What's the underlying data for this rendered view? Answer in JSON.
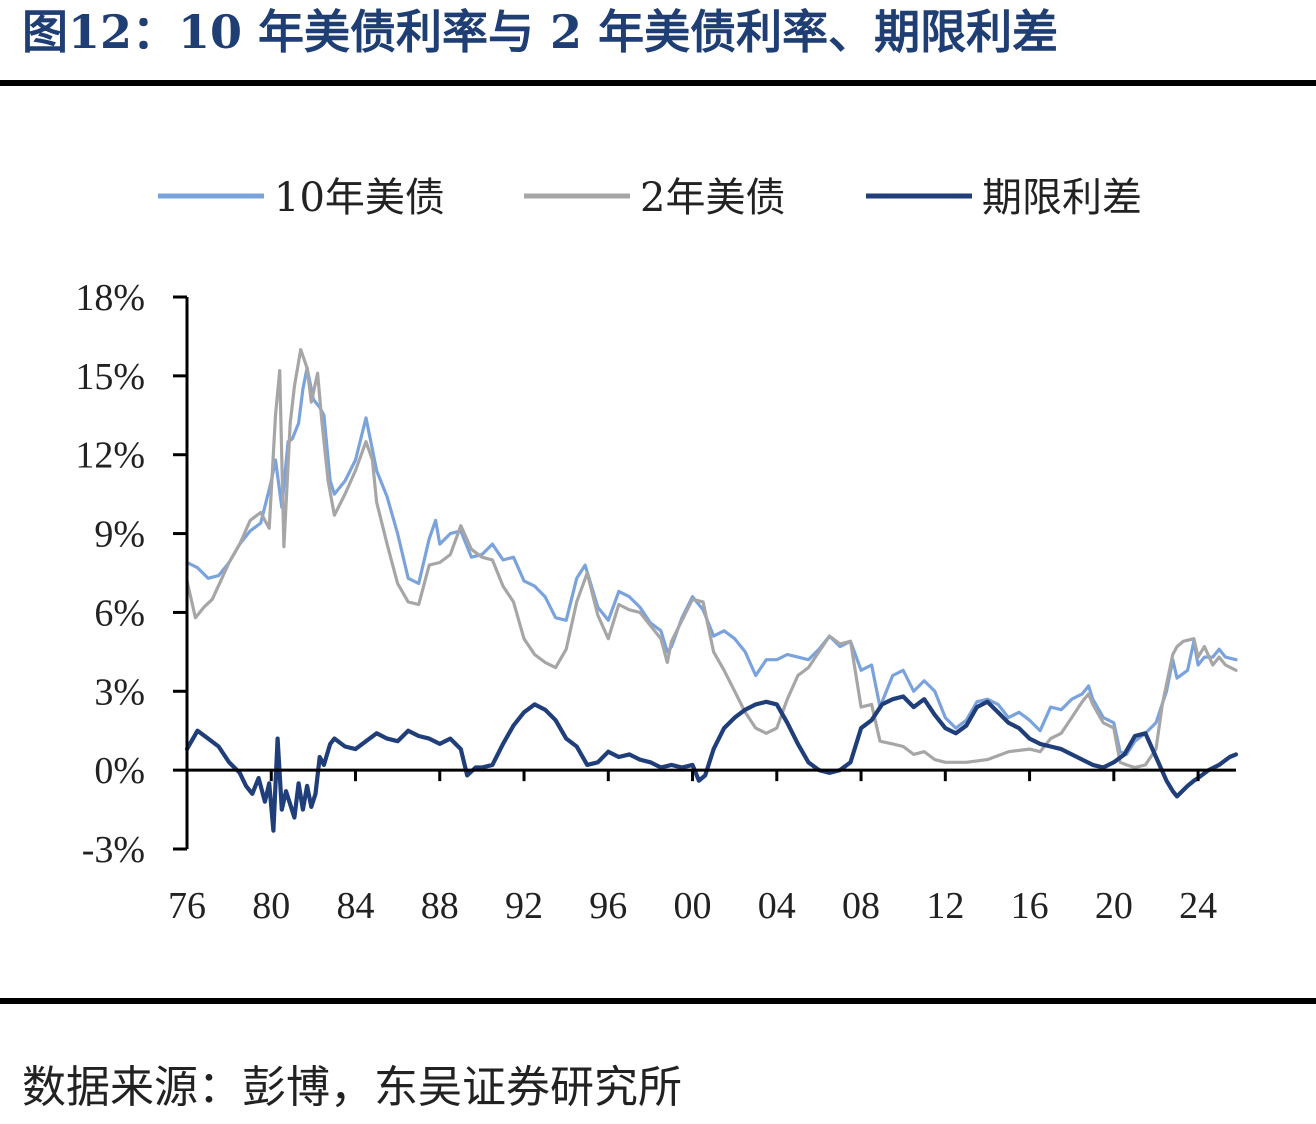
{
  "header": {
    "title": "图12：10 年美债利率与 2 年美债利率、期限利差"
  },
  "footer": {
    "source": "数据来源：彭博，东吴证券研究所"
  },
  "chart_data": {
    "type": "line",
    "title": "图12：10 年美债利率与 2 年美债利率、期限利差",
    "xlabel": "",
    "ylabel": "",
    "x_tick_labels": [
      "76",
      "80",
      "84",
      "88",
      "92",
      "96",
      "00",
      "04",
      "08",
      "12",
      "16",
      "20",
      "24"
    ],
    "x_ticks": [
      1976,
      1980,
      1984,
      1988,
      1992,
      1996,
      2000,
      2004,
      2008,
      2012,
      2016,
      2020,
      2024
    ],
    "xlim": [
      1976,
      2025.8
    ],
    "y_tick_labels": [
      "18%",
      "15%",
      "12%",
      "9%",
      "6%",
      "3%",
      "0%",
      "-3%"
    ],
    "y_ticks": [
      18,
      15,
      12,
      9,
      6,
      3,
      0,
      -3
    ],
    "ylim": [
      -3,
      18
    ],
    "grid": false,
    "legend_position": "top",
    "colors": {
      "ust10y": "#7aa3dd",
      "ust2y": "#a6a6a6",
      "spread": "#1f3e7a"
    },
    "series": [
      {
        "name": "10年美债",
        "x": [
          1976.0,
          1976.5,
          1977.0,
          1977.5,
          1978.0,
          1978.5,
          1979.0,
          1979.5,
          1980.0,
          1980.2,
          1980.5,
          1980.8,
          1981.0,
          1981.3,
          1981.5,
          1981.7,
          1982.0,
          1982.3,
          1982.5,
          1982.8,
          1983.0,
          1983.5,
          1984.0,
          1984.5,
          1984.8,
          1985.0,
          1985.5,
          1986.0,
          1986.5,
          1987.0,
          1987.5,
          1987.8,
          1988.0,
          1988.5,
          1989.0,
          1989.5,
          1990.0,
          1990.5,
          1991.0,
          1991.5,
          1992.0,
          1992.5,
          1993.0,
          1993.5,
          1994.0,
          1994.5,
          1994.9,
          1995.5,
          1996.0,
          1996.5,
          1997.0,
          1997.5,
          1998.0,
          1998.5,
          1998.8,
          1999.0,
          1999.5,
          2000.0,
          2000.5,
          2001.0,
          2001.5,
          2002.0,
          2002.5,
          2003.0,
          2003.5,
          2004.0,
          2004.5,
          2005.0,
          2005.5,
          2006.0,
          2006.5,
          2007.0,
          2007.5,
          2008.0,
          2008.5,
          2008.9,
          2009.5,
          2010.0,
          2010.5,
          2011.0,
          2011.5,
          2012.0,
          2012.5,
          2013.0,
          2013.5,
          2014.0,
          2014.5,
          2015.0,
          2015.5,
          2016.0,
          2016.5,
          2017.0,
          2017.5,
          2018.0,
          2018.5,
          2018.8,
          2019.0,
          2019.5,
          2020.0,
          2020.3,
          2020.6,
          2021.0,
          2021.5,
          2022.0,
          2022.5,
          2022.8,
          2023.0,
          2023.5,
          2023.8,
          2024.0,
          2024.3,
          2024.7,
          2025.0,
          2025.3,
          2025.8
        ],
        "values": [
          7.9,
          7.7,
          7.3,
          7.4,
          7.9,
          8.6,
          9.1,
          9.4,
          11.0,
          11.8,
          10.0,
          12.5,
          12.6,
          13.2,
          14.5,
          15.3,
          14.1,
          13.8,
          13.5,
          11.0,
          10.5,
          11.0,
          11.8,
          13.4,
          12.2,
          11.4,
          10.4,
          9.0,
          7.3,
          7.1,
          8.8,
          9.5,
          8.6,
          9.0,
          9.1,
          8.1,
          8.2,
          8.6,
          8.0,
          8.1,
          7.2,
          7.0,
          6.6,
          5.8,
          5.7,
          7.3,
          7.8,
          6.2,
          5.7,
          6.8,
          6.6,
          6.2,
          5.6,
          5.3,
          4.5,
          4.7,
          5.8,
          6.6,
          6.1,
          5.1,
          5.3,
          5.0,
          4.5,
          3.6,
          4.2,
          4.2,
          4.4,
          4.3,
          4.2,
          4.6,
          5.1,
          4.7,
          4.9,
          3.8,
          4.0,
          2.4,
          3.6,
          3.8,
          3.0,
          3.4,
          3.0,
          2.0,
          1.6,
          1.9,
          2.6,
          2.7,
          2.5,
          2.0,
          2.2,
          1.9,
          1.5,
          2.4,
          2.3,
          2.7,
          2.9,
          3.2,
          2.7,
          2.0,
          1.8,
          0.7,
          0.6,
          1.1,
          1.4,
          1.8,
          3.0,
          4.2,
          3.5,
          3.8,
          4.9,
          4.0,
          4.3,
          4.3,
          4.6,
          4.3,
          4.2
        ]
      },
      {
        "name": "2年美债",
        "x": [
          1976.0,
          1976.4,
          1976.8,
          1977.2,
          1977.6,
          1978.0,
          1978.5,
          1979.0,
          1979.5,
          1979.9,
          1980.2,
          1980.4,
          1980.6,
          1980.9,
          1981.1,
          1981.4,
          1981.7,
          1981.9,
          1982.2,
          1982.4,
          1982.7,
          1983.0,
          1983.5,
          1984.0,
          1984.5,
          1984.8,
          1985.0,
          1985.5,
          1986.0,
          1986.5,
          1987.0,
          1987.5,
          1988.0,
          1988.5,
          1989.0,
          1989.5,
          1990.0,
          1990.5,
          1991.0,
          1991.5,
          1992.0,
          1992.5,
          1993.0,
          1993.5,
          1994.0,
          1994.5,
          1995.0,
          1995.5,
          1996.0,
          1996.5,
          1997.0,
          1997.5,
          1998.0,
          1998.5,
          1998.8,
          1999.0,
          1999.5,
          2000.0,
          2000.5,
          2001.0,
          2001.5,
          2002.0,
          2002.5,
          2003.0,
          2003.5,
          2004.0,
          2004.5,
          2005.0,
          2005.5,
          2006.0,
          2006.5,
          2007.0,
          2007.5,
          2008.0,
          2008.5,
          2008.9,
          2009.5,
          2010.0,
          2010.5,
          2011.0,
          2011.5,
          2012.0,
          2013.0,
          2014.0,
          2015.0,
          2016.0,
          2016.5,
          2017.0,
          2017.5,
          2018.0,
          2018.5,
          2018.8,
          2019.0,
          2019.5,
          2020.0,
          2020.3,
          2020.6,
          2021.0,
          2021.5,
          2022.0,
          2022.3,
          2022.8,
          2023.0,
          2023.3,
          2023.8,
          2024.0,
          2024.3,
          2024.7,
          2025.0,
          2025.3,
          2025.8
        ],
        "values": [
          7.2,
          5.8,
          6.2,
          6.5,
          7.2,
          7.9,
          8.6,
          9.5,
          9.8,
          9.2,
          13.5,
          15.2,
          8.5,
          13.2,
          14.6,
          16.0,
          15.3,
          14.0,
          15.1,
          13.3,
          11.0,
          9.7,
          10.5,
          11.4,
          12.5,
          11.8,
          10.2,
          8.6,
          7.1,
          6.4,
          6.3,
          7.8,
          7.9,
          8.2,
          9.3,
          8.4,
          8.1,
          8.0,
          7.0,
          6.4,
          5.0,
          4.4,
          4.1,
          3.9,
          4.6,
          6.4,
          7.5,
          5.9,
          5.0,
          6.3,
          6.1,
          6.0,
          5.5,
          5.0,
          4.1,
          4.9,
          5.7,
          6.5,
          6.4,
          4.5,
          3.8,
          3.0,
          2.2,
          1.6,
          1.4,
          1.6,
          2.7,
          3.6,
          3.9,
          4.5,
          5.1,
          4.8,
          4.9,
          2.4,
          2.5,
          1.1,
          1.0,
          0.9,
          0.6,
          0.7,
          0.4,
          0.3,
          0.3,
          0.4,
          0.7,
          0.8,
          0.7,
          1.2,
          1.4,
          2.0,
          2.6,
          2.9,
          2.5,
          1.8,
          1.6,
          0.3,
          0.2,
          0.1,
          0.2,
          0.8,
          2.5,
          4.4,
          4.7,
          4.9,
          5.0,
          4.3,
          4.7,
          4.0,
          4.3,
          4.0,
          3.8
        ]
      },
      {
        "name": "期限利差",
        "x": [
          1976.0,
          1976.5,
          1977.0,
          1977.5,
          1978.0,
          1978.5,
          1978.8,
          1979.1,
          1979.4,
          1979.7,
          1979.9,
          1980.1,
          1980.3,
          1980.5,
          1980.7,
          1980.9,
          1981.1,
          1981.3,
          1981.5,
          1981.7,
          1981.9,
          1982.1,
          1982.3,
          1982.5,
          1982.8,
          1983.0,
          1983.5,
          1984.0,
          1984.5,
          1985.0,
          1985.5,
          1986.0,
          1986.5,
          1987.0,
          1987.5,
          1988.0,
          1988.5,
          1989.0,
          1989.3,
          1989.7,
          1990.0,
          1990.5,
          1991.0,
          1991.5,
          1992.0,
          1992.5,
          1993.0,
          1993.5,
          1994.0,
          1994.5,
          1995.0,
          1995.5,
          1996.0,
          1996.5,
          1997.0,
          1997.5,
          1998.0,
          1998.5,
          1999.0,
          1999.5,
          2000.0,
          2000.3,
          2000.6,
          2001.0,
          2001.5,
          2002.0,
          2002.5,
          2003.0,
          2003.5,
          2004.0,
          2004.5,
          2005.0,
          2005.5,
          2006.0,
          2006.5,
          2007.0,
          2007.5,
          2008.0,
          2008.5,
          2009.0,
          2009.5,
          2010.0,
          2010.5,
          2011.0,
          2011.5,
          2012.0,
          2012.5,
          2013.0,
          2013.5,
          2014.0,
          2014.5,
          2015.0,
          2015.5,
          2016.0,
          2016.5,
          2017.0,
          2017.5,
          2018.0,
          2018.5,
          2019.0,
          2019.5,
          2020.0,
          2020.5,
          2021.0,
          2021.5,
          2022.0,
          2022.5,
          2022.8,
          2023.0,
          2023.5,
          2023.8,
          2024.0,
          2024.5,
          2025.0,
          2025.5,
          2025.8
        ],
        "values": [
          0.8,
          1.5,
          1.2,
          0.9,
          0.3,
          -0.1,
          -0.6,
          -0.9,
          -0.3,
          -1.2,
          -0.5,
          -2.3,
          1.2,
          -1.5,
          -0.8,
          -1.3,
          -1.8,
          -0.5,
          -1.5,
          -0.6,
          -1.4,
          -0.9,
          0.5,
          0.2,
          1.0,
          1.2,
          0.9,
          0.8,
          1.1,
          1.4,
          1.2,
          1.1,
          1.5,
          1.3,
          1.2,
          1.0,
          1.2,
          0.8,
          -0.2,
          0.1,
          0.1,
          0.2,
          1.0,
          1.7,
          2.2,
          2.5,
          2.3,
          1.9,
          1.2,
          0.9,
          0.2,
          0.3,
          0.7,
          0.5,
          0.6,
          0.4,
          0.3,
          0.1,
          0.2,
          0.1,
          0.2,
          -0.4,
          -0.2,
          0.8,
          1.6,
          2.0,
          2.3,
          2.5,
          2.6,
          2.5,
          1.8,
          1.0,
          0.3,
          0.0,
          -0.1,
          0.0,
          0.3,
          1.6,
          1.9,
          2.5,
          2.7,
          2.8,
          2.4,
          2.7,
          2.1,
          1.6,
          1.4,
          1.7,
          2.4,
          2.6,
          2.2,
          1.8,
          1.6,
          1.2,
          1.0,
          0.9,
          0.8,
          0.6,
          0.4,
          0.2,
          0.1,
          0.3,
          0.6,
          1.3,
          1.4,
          0.5,
          -0.4,
          -0.8,
          -1.0,
          -0.6,
          -0.4,
          -0.3,
          0.0,
          0.2,
          0.5,
          0.6
        ]
      }
    ]
  }
}
